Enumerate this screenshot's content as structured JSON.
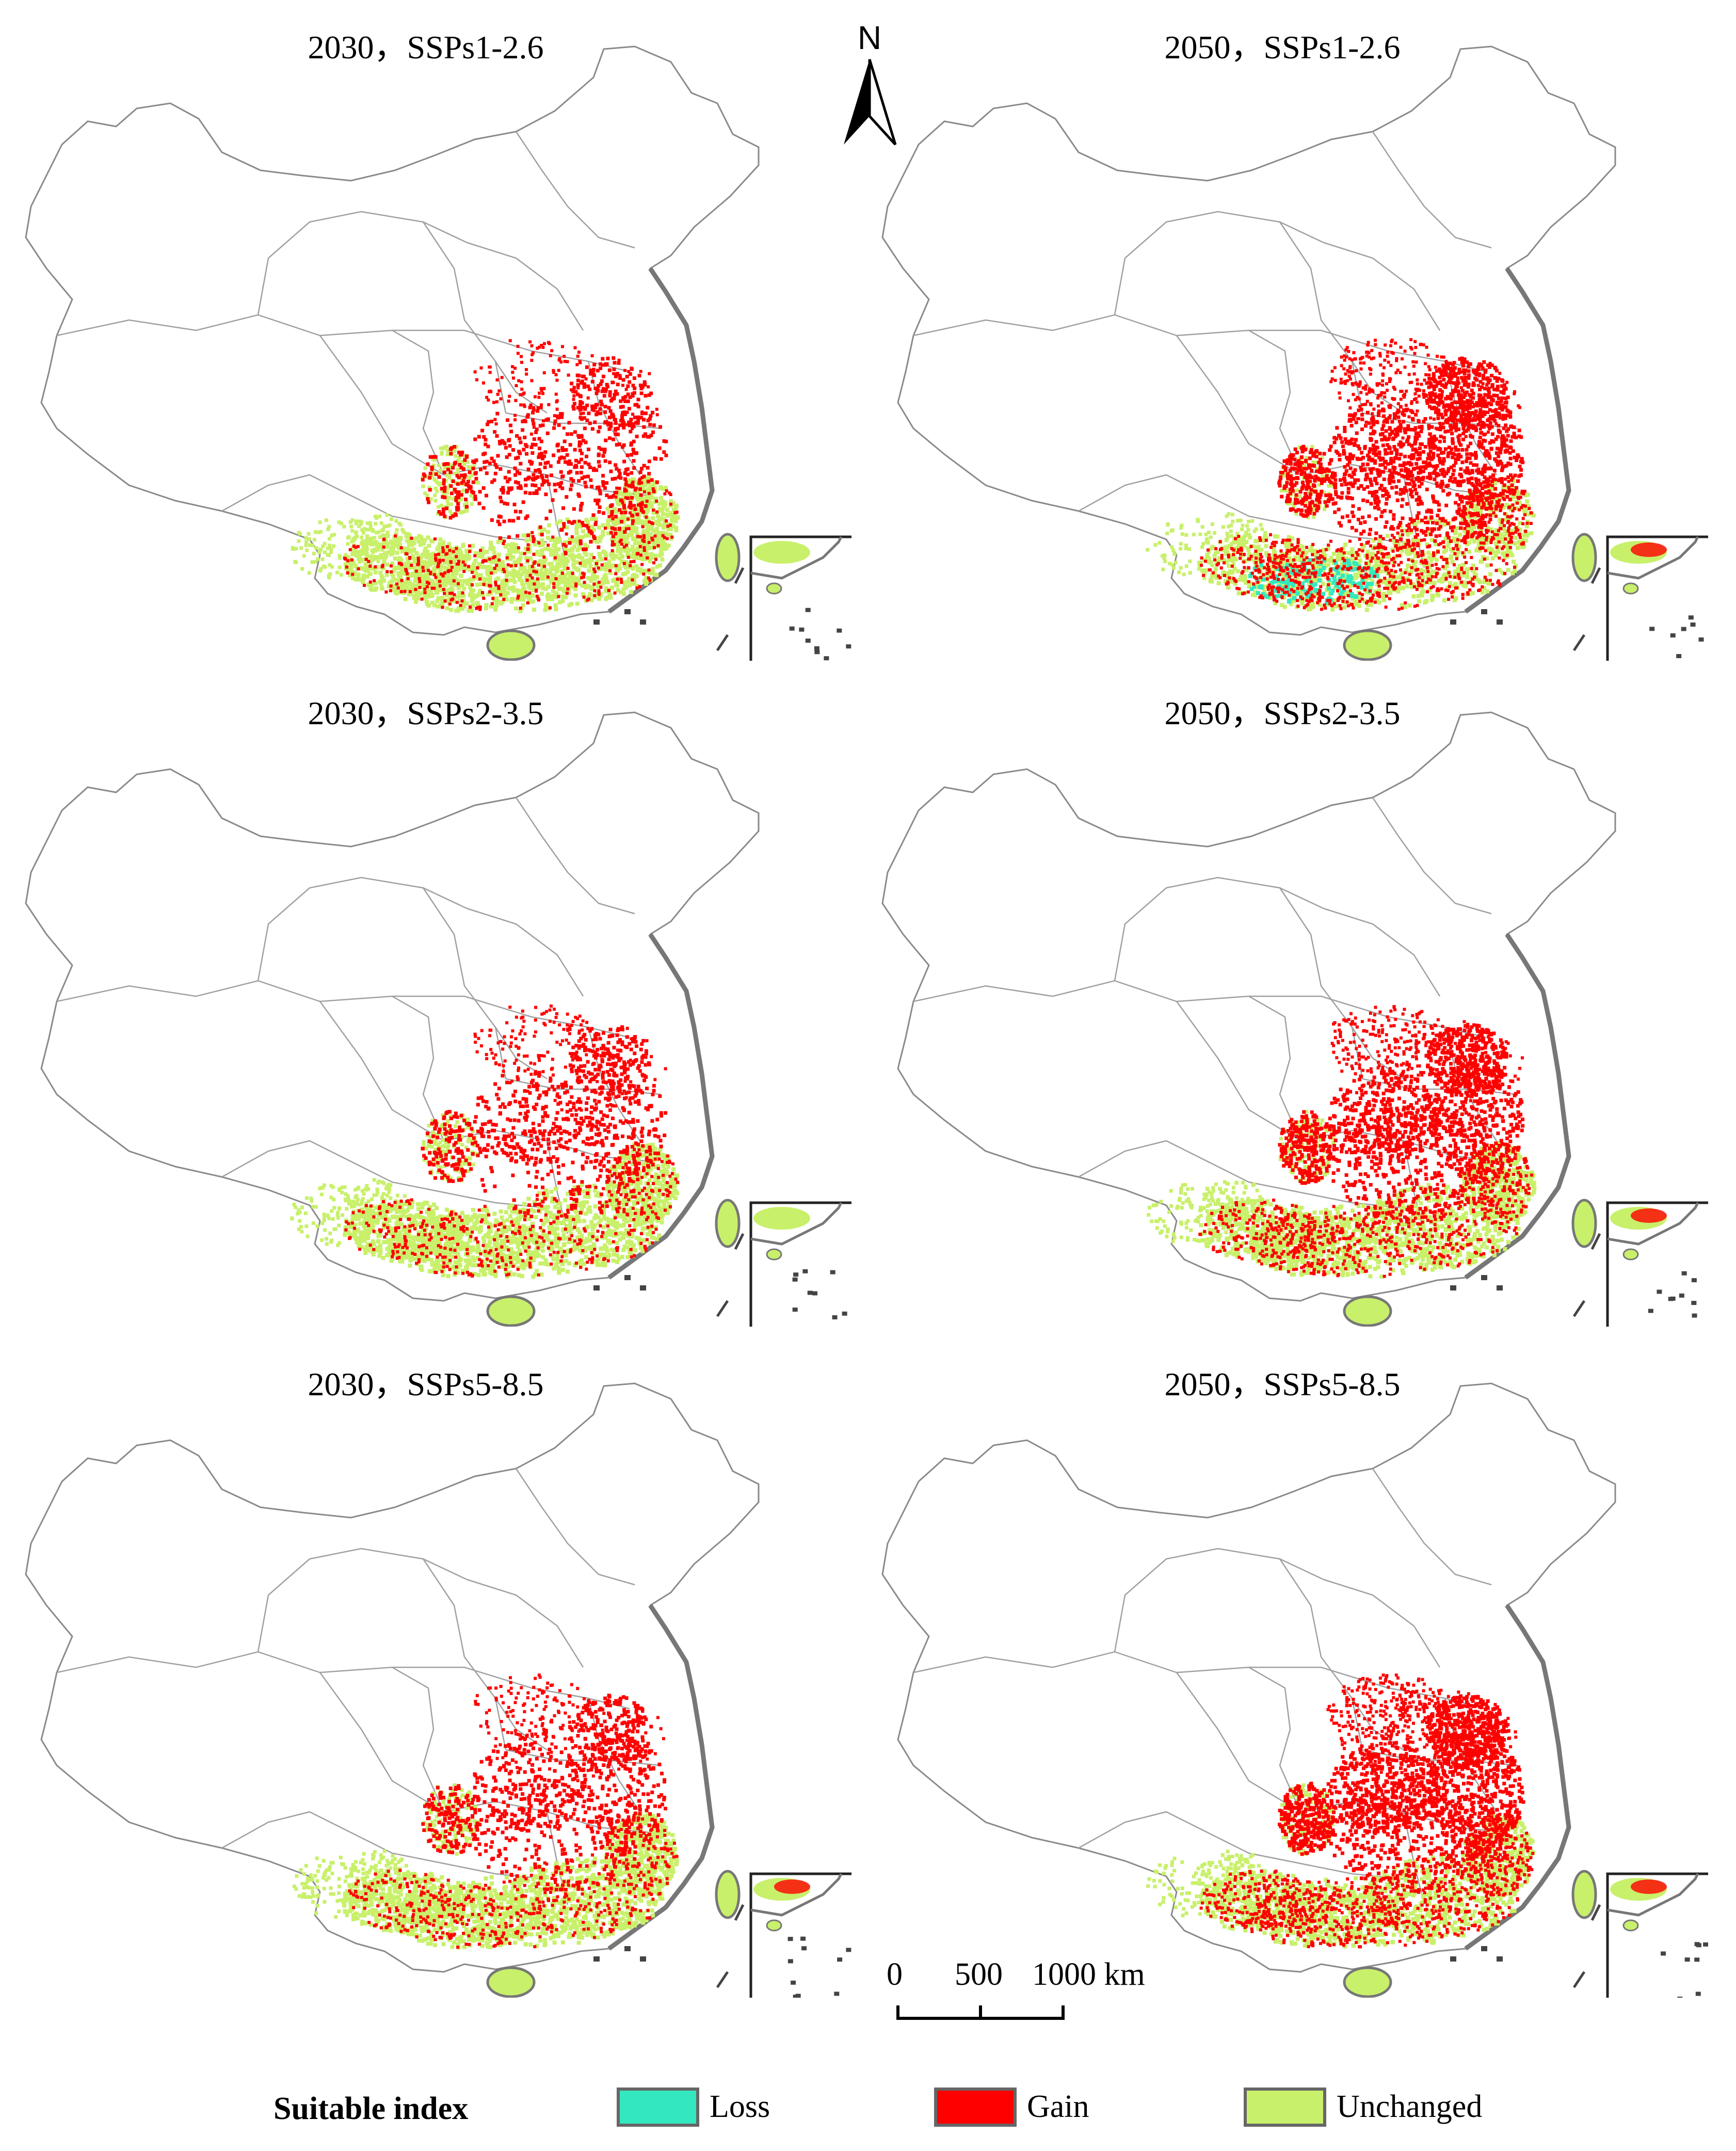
{
  "north_arrow": {
    "label": "N"
  },
  "panels": [
    {
      "title": "2030，SSPs1-2.6",
      "gain_density": 0.25,
      "loss_density": 0.0,
      "unchanged_density": 0.55
    },
    {
      "title": "2050，SSPs1-2.6",
      "gain_density": 0.55,
      "loss_density": 0.35,
      "unchanged_density": 0.35
    },
    {
      "title": "2030，SSPs2-3.5",
      "gain_density": 0.3,
      "loss_density": 0.0,
      "unchanged_density": 0.55
    },
    {
      "title": "2050，SSPs2-3.5",
      "gain_density": 0.55,
      "loss_density": 0.0,
      "unchanged_density": 0.5
    },
    {
      "title": "2030，SSPs5-8.5",
      "gain_density": 0.35,
      "loss_density": 0.0,
      "unchanged_density": 0.55
    },
    {
      "title": "2050，SSPs5-8.5",
      "gain_density": 0.7,
      "loss_density": 0.0,
      "unchanged_density": 0.45
    }
  ],
  "scale_bar": {
    "ticks": [
      "0",
      "500",
      "1000 km"
    ]
  },
  "legend": {
    "title": "Suitable index",
    "items": [
      {
        "label": "Loss",
        "color": "#33e8c0"
      },
      {
        "label": "Gain",
        "color": "#ff0000"
      },
      {
        "label": "Unchanged",
        "color": "#c8f06a"
      }
    ]
  },
  "colors": {
    "outline": "#8a8a8a",
    "coast": "#777777",
    "islands": "#444444"
  }
}
